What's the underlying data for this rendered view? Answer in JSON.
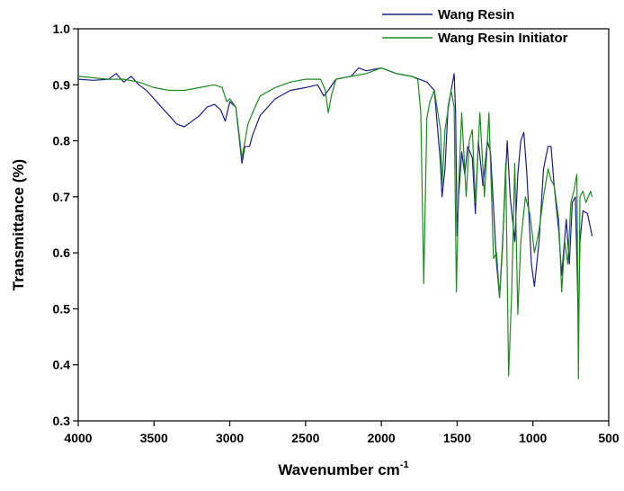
{
  "chart_data": {
    "type": "line",
    "x_label": "Wavenumber cm",
    "x_label_superscript": "-1",
    "y_label": "Transmittance (%)",
    "xlim": [
      4000,
      500
    ],
    "xticks": [
      4000,
      3500,
      3000,
      2500,
      2000,
      1500,
      1000,
      500
    ],
    "ylim": [
      0.3,
      1.0
    ],
    "yticks": [
      0.3,
      0.4,
      0.5,
      0.6,
      0.7,
      0.8,
      0.9,
      {
        "value": 1,
        "label": "1.0"
      }
    ],
    "legend": "top-right",
    "series": [
      {
        "name": "Wang Resin",
        "color": "#1c1c8c",
        "x": [
          4000,
          3900,
          3800,
          3750,
          3700,
          3650,
          3600,
          3550,
          3500,
          3450,
          3400,
          3350,
          3300,
          3250,
          3200,
          3150,
          3100,
          3060,
          3030,
          3000,
          2960,
          2920,
          2900,
          2870,
          2850,
          2800,
          2700,
          2600,
          2500,
          2420,
          2380,
          2350,
          2300,
          2200,
          2150,
          2100,
          2000,
          1950,
          1900,
          1800,
          1750,
          1700,
          1650,
          1610,
          1600,
          1580,
          1560,
          1520,
          1510,
          1500,
          1490,
          1470,
          1450,
          1430,
          1400,
          1380,
          1360,
          1330,
          1300,
          1280,
          1240,
          1220,
          1200,
          1170,
          1150,
          1120,
          1100,
          1080,
          1060,
          1040,
          1010,
          990,
          960,
          930,
          900,
          880,
          860,
          830,
          810,
          780,
          760,
          740,
          720,
          700,
          690,
          670,
          640,
          610
        ],
        "values": [
          0.91,
          0.908,
          0.91,
          0.92,
          0.905,
          0.915,
          0.9,
          0.89,
          0.875,
          0.86,
          0.845,
          0.83,
          0.825,
          0.835,
          0.845,
          0.86,
          0.865,
          0.855,
          0.835,
          0.87,
          0.86,
          0.76,
          0.79,
          0.79,
          0.81,
          0.845,
          0.875,
          0.89,
          0.895,
          0.9,
          0.88,
          0.89,
          0.91,
          0.915,
          0.93,
          0.925,
          0.93,
          0.925,
          0.92,
          0.915,
          0.91,
          0.905,
          0.89,
          0.76,
          0.7,
          0.75,
          0.86,
          0.92,
          0.85,
          0.63,
          0.7,
          0.78,
          0.74,
          0.79,
          0.77,
          0.67,
          0.8,
          0.72,
          0.8,
          0.78,
          0.58,
          0.52,
          0.62,
          0.8,
          0.7,
          0.62,
          0.74,
          0.8,
          0.815,
          0.74,
          0.58,
          0.54,
          0.62,
          0.75,
          0.79,
          0.79,
          0.72,
          0.64,
          0.56,
          0.66,
          0.58,
          0.69,
          0.7,
          0.47,
          0.62,
          0.675,
          0.67,
          0.63
        ]
      },
      {
        "name": "Wang Resin Initiator",
        "color": "#1f8a1f",
        "x": [
          4000,
          3800,
          3700,
          3600,
          3500,
          3400,
          3300,
          3200,
          3100,
          3050,
          3020,
          3000,
          2960,
          2920,
          2880,
          2850,
          2800,
          2700,
          2600,
          2500,
          2400,
          2370,
          2350,
          2330,
          2300,
          2200,
          2100,
          2000,
          1900,
          1800,
          1760,
          1740,
          1720,
          1700,
          1680,
          1650,
          1610,
          1600,
          1580,
          1540,
          1520,
          1505,
          1490,
          1470,
          1440,
          1420,
          1400,
          1380,
          1350,
          1320,
          1290,
          1260,
          1240,
          1220,
          1200,
          1180,
          1160,
          1140,
          1120,
          1100,
          1080,
          1050,
          1020,
          990,
          960,
          930,
          900,
          880,
          860,
          830,
          810,
          790,
          770,
          750,
          730,
          710,
          700,
          690,
          670,
          650,
          620,
          610
        ],
        "values": [
          0.915,
          0.91,
          0.91,
          0.905,
          0.895,
          0.89,
          0.89,
          0.895,
          0.9,
          0.895,
          0.87,
          0.875,
          0.86,
          0.77,
          0.83,
          0.85,
          0.88,
          0.895,
          0.905,
          0.91,
          0.91,
          0.89,
          0.85,
          0.88,
          0.91,
          0.915,
          0.92,
          0.93,
          0.92,
          0.915,
          0.91,
          0.85,
          0.545,
          0.84,
          0.87,
          0.89,
          0.82,
          0.72,
          0.82,
          0.89,
          0.86,
          0.53,
          0.72,
          0.85,
          0.7,
          0.8,
          0.82,
          0.69,
          0.85,
          0.7,
          0.85,
          0.59,
          0.6,
          0.52,
          0.61,
          0.76,
          0.38,
          0.53,
          0.76,
          0.49,
          0.62,
          0.7,
          0.67,
          0.6,
          0.64,
          0.7,
          0.75,
          0.73,
          0.72,
          0.66,
          0.53,
          0.62,
          0.58,
          0.69,
          0.71,
          0.74,
          0.375,
          0.7,
          0.71,
          0.69,
          0.71,
          0.7
        ]
      }
    ]
  }
}
